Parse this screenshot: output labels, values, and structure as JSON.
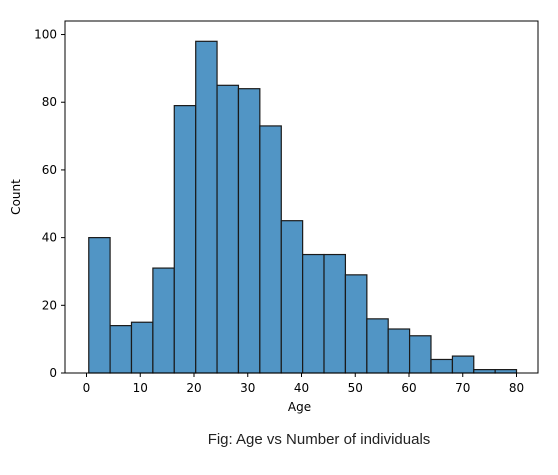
{
  "caption": "Fig: Age vs Number of individuals",
  "chart_data": {
    "type": "bar",
    "subtype": "histogram",
    "xlabel": "Age",
    "ylabel": "Count",
    "xlim": [
      -4,
      84
    ],
    "ylim": [
      0,
      104
    ],
    "x_ticks": [
      0,
      10,
      20,
      30,
      40,
      50,
      60,
      70,
      80
    ],
    "y_ticks": [
      0,
      20,
      40,
      60,
      80,
      100
    ],
    "grid": false,
    "bar_color": "#5195c5",
    "edge_color": "#1a1a1a",
    "bins": [
      {
        "x0": 0.42,
        "x1": 4.39,
        "count": 40
      },
      {
        "x0": 4.39,
        "x1": 8.37,
        "count": 14
      },
      {
        "x0": 8.37,
        "x1": 12.35,
        "count": 15
      },
      {
        "x0": 12.35,
        "x1": 16.33,
        "count": 31
      },
      {
        "x0": 16.33,
        "x1": 20.32,
        "count": 79
      },
      {
        "x0": 20.32,
        "x1": 24.29,
        "count": 98
      },
      {
        "x0": 24.29,
        "x1": 28.27,
        "count": 85
      },
      {
        "x0": 28.27,
        "x1": 32.25,
        "count": 84
      },
      {
        "x0": 32.25,
        "x1": 36.24,
        "count": 73
      },
      {
        "x0": 36.24,
        "x1": 40.21,
        "count": 45
      },
      {
        "x0": 40.21,
        "x1": 44.19,
        "count": 35
      },
      {
        "x0": 44.19,
        "x1": 48.17,
        "count": 35
      },
      {
        "x0": 48.17,
        "x1": 52.16,
        "count": 29
      },
      {
        "x0": 52.16,
        "x1": 56.13,
        "count": 16
      },
      {
        "x0": 56.13,
        "x1": 60.11,
        "count": 13
      },
      {
        "x0": 60.11,
        "x1": 64.09,
        "count": 11
      },
      {
        "x0": 64.09,
        "x1": 68.08,
        "count": 4
      },
      {
        "x0": 68.08,
        "x1": 72.05,
        "count": 5
      },
      {
        "x0": 72.05,
        "x1": 76.03,
        "count": 1
      },
      {
        "x0": 76.03,
        "x1": 80.0,
        "count": 1
      }
    ]
  }
}
